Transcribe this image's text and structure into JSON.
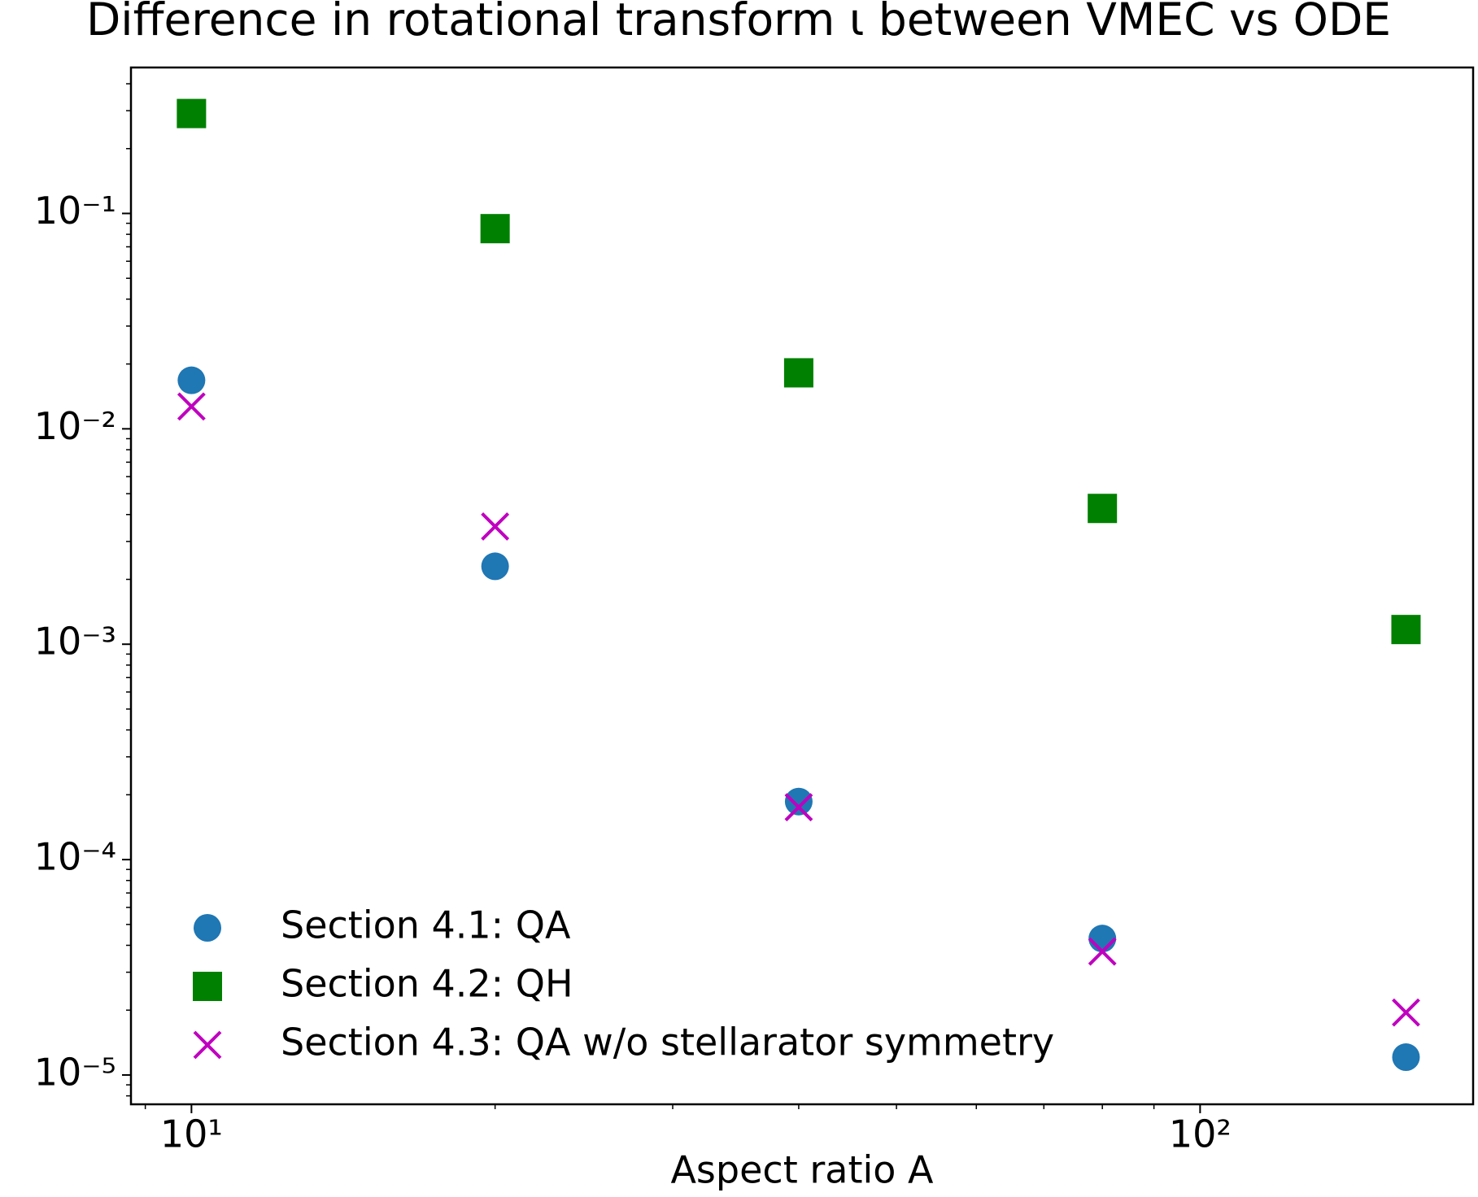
{
  "chart_data": {
    "type": "scatter",
    "title": "Difference in rotational transform ι between VMEC vs ODE",
    "x_label": "Aspect ratio A",
    "xscale": "log",
    "yscale": "log",
    "xlim": [
      8.71,
      186.5
    ],
    "ylim": [
      7.31e-06,
      0.476
    ],
    "xticks": [
      {
        "value": 10,
        "label": "10¹"
      },
      {
        "value": 100,
        "label": "10²"
      }
    ],
    "xminorticks": [
      9,
      20,
      30,
      40,
      50,
      60,
      70,
      80,
      90
    ],
    "yticks": [
      {
        "value": 1e-05,
        "label": "10⁻⁵"
      },
      {
        "value": 0.0001,
        "label": "10⁻⁴"
      },
      {
        "value": 0.001,
        "label": "10⁻³"
      },
      {
        "value": 0.01,
        "label": "10⁻²"
      },
      {
        "value": 0.1,
        "label": "10⁻¹"
      }
    ],
    "yminorticks": [
      8e-06,
      9e-06,
      2e-05,
      3e-05,
      4e-05,
      5e-05,
      6e-05,
      7e-05,
      8e-05,
      9e-05,
      0.0002,
      0.0003,
      0.0004,
      0.0005,
      0.0006,
      0.0007,
      0.0008,
      0.0009,
      0.002,
      0.003,
      0.004,
      0.005,
      0.006,
      0.007,
      0.008,
      0.009,
      0.02,
      0.03,
      0.04,
      0.05,
      0.06,
      0.07,
      0.08,
      0.09,
      0.2,
      0.3,
      0.4
    ],
    "legend": "lower left",
    "x": [
      10,
      20,
      40,
      80,
      160
    ],
    "series": [
      {
        "name": "Section 4.1: QA",
        "color": "#1f77b4",
        "marker": "circle",
        "values": [
          0.0168,
          0.0023,
          0.000186,
          4.3e-05,
          1.21e-05
        ]
      },
      {
        "name": "Section 4.2: QH",
        "color": "#008000",
        "marker": "square",
        "values": [
          0.291,
          0.085,
          0.0182,
          0.00427,
          0.00117
        ]
      },
      {
        "name": "Section 4.3: QA w/o stellarator symmetry",
        "color": "#bf00bf",
        "marker": "x",
        "values": [
          0.0127,
          0.00352,
          0.000175,
          3.74e-05,
          1.95e-05
        ]
      }
    ]
  }
}
